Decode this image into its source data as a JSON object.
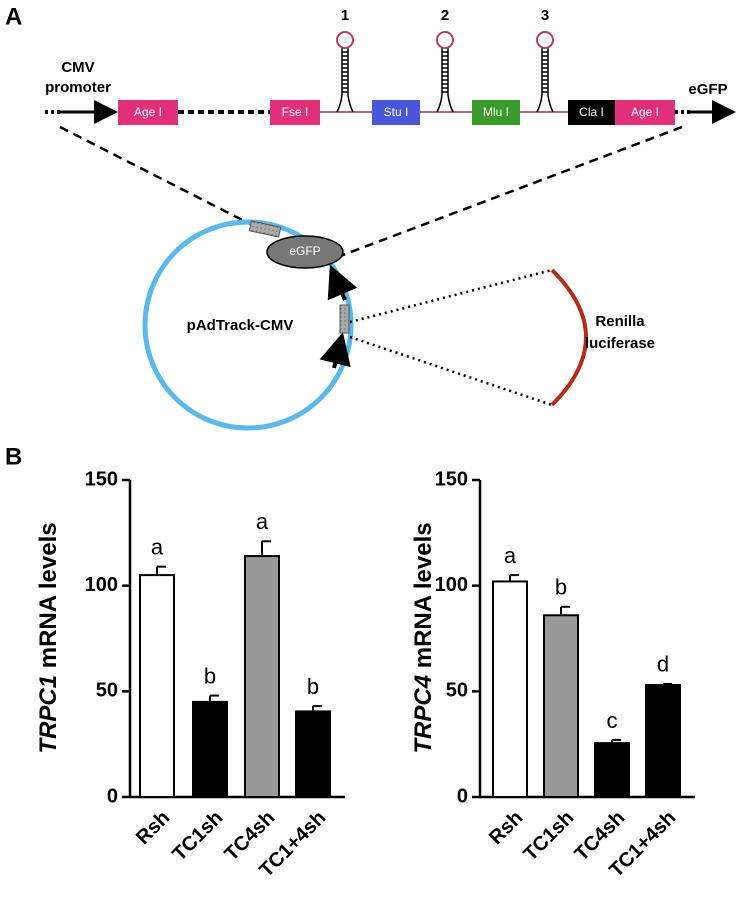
{
  "panel_a": {
    "letter": "A",
    "promoter": [
      "CMV",
      "promoter"
    ],
    "hairpins": [
      "1",
      "2",
      "3"
    ],
    "sites": [
      "Age I",
      "Fse I",
      "Stu I",
      "Mlu I",
      "Cla I",
      "Age I"
    ],
    "site_colors": [
      "#e0307a",
      "#e0307a",
      "#4a56d8",
      "#3a9a2a",
      "#000000",
      "#e0307a"
    ],
    "reporter": "eGFP",
    "plasmid": "pAdTrack-CMV",
    "plasmid_gene": "eGFP",
    "insert": [
      "Renilla",
      "luciferase"
    ]
  },
  "panel_b": {
    "letter": "B"
  },
  "chart_data": [
    {
      "type": "bar",
      "ylabel": [
        "TRPC1",
        "mRNA levels"
      ],
      "categories": [
        "Rsh",
        "TC1sh",
        "TC4sh",
        "TC1+4sh"
      ],
      "values": [
        105,
        45,
        114,
        40.5
      ],
      "errors": [
        4,
        3,
        7,
        2.5
      ],
      "annotations": [
        "a",
        "b",
        "a",
        "b"
      ],
      "colors": [
        "#ffffff",
        "#000000",
        "#999999",
        "#000000"
      ],
      "ylim": [
        0,
        150
      ],
      "yticks": [
        0,
        50,
        100,
        150
      ]
    },
    {
      "type": "bar",
      "ylabel": [
        "TRPC4",
        "mRNA levels"
      ],
      "categories": [
        "Rsh",
        "TC1sh",
        "TC4sh",
        "TC1+4sh"
      ],
      "values": [
        102,
        86,
        25.5,
        53
      ],
      "errors": [
        3,
        4,
        1.5,
        0.5
      ],
      "annotations": [
        "a",
        "b",
        "c",
        "d"
      ],
      "colors": [
        "#ffffff",
        "#999999",
        "#000000",
        "#000000"
      ],
      "ylim": [
        0,
        150
      ],
      "yticks": [
        0,
        50,
        100,
        150
      ]
    }
  ]
}
